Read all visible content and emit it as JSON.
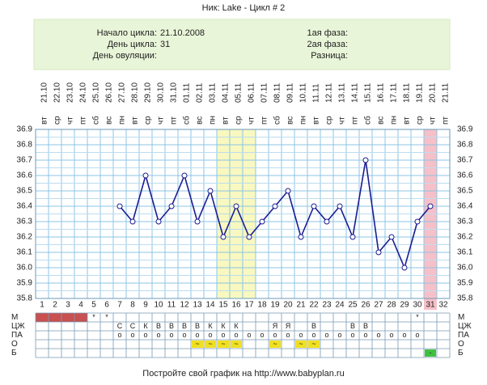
{
  "chart_data": {
    "type": "line",
    "title": "Ник: Lake - Цикл # 2",
    "info_left": [
      {
        "label": "Начало цикла:",
        "value": "21.10.2008"
      },
      {
        "label": "День цикла:",
        "value": "31"
      },
      {
        "label": "День овуляции:"
      }
    ],
    "info_right": [
      {
        "label": "1ая фаза:"
      },
      {
        "label": "2ая фаза:"
      },
      {
        "label": "Разница:"
      }
    ],
    "categories": [
      1,
      2,
      3,
      4,
      5,
      6,
      7,
      8,
      9,
      10,
      11,
      12,
      13,
      14,
      15,
      16,
      17,
      18,
      19,
      20,
      21,
      22,
      23,
      24,
      25,
      26,
      27,
      28,
      29,
      30,
      31,
      32
    ],
    "dates": [
      "21.10",
      "22.10",
      "23.10",
      "24.10",
      "25.10",
      "26.10",
      "27.10",
      "28.10",
      "29.10",
      "30.10",
      "31.10",
      "01.11",
      "02.11",
      "03.11",
      "04.11",
      "05.11",
      "06.11",
      "07.11",
      "08.11",
      "09.11",
      "10.11",
      "11.11",
      "12.11",
      "13.11",
      "14.11",
      "15.11",
      "16.11",
      "17.11",
      "18.11",
      "19.11",
      "20.11",
      "21.11"
    ],
    "weekdays": [
      "вт",
      "ср",
      "чт",
      "пт",
      "сб",
      "вс",
      "пн",
      "вт",
      "ср",
      "чт",
      "пт",
      "сб",
      "вс",
      "пн",
      "вт",
      "ср",
      "чт",
      "пт",
      "сб",
      "вс",
      "пн",
      "вт",
      "ср",
      "чт",
      "пт",
      "сб",
      "вс",
      "пн",
      "вт",
      "ср",
      "чт",
      "пт"
    ],
    "values": [
      null,
      null,
      null,
      null,
      null,
      null,
      36.4,
      36.3,
      36.6,
      36.3,
      36.4,
      36.6,
      36.3,
      36.5,
      36.2,
      36.4,
      36.2,
      36.3,
      36.4,
      36.5,
      36.2,
      36.4,
      36.3,
      36.4,
      36.2,
      36.7,
      36.1,
      36.2,
      36.0,
      36.3,
      36.4,
      null
    ],
    "color": "#1c1c90",
    "ylim": [
      35.8,
      36.9
    ],
    "yticks": [
      {
        "value": 35.8,
        "label": "35.8"
      },
      {
        "value": 35.9,
        "label": "35.9"
      },
      {
        "value": 36.0,
        "label": "36.0"
      },
      36.1,
      36.2,
      36.3,
      36.4,
      36.5,
      36.6,
      36.7,
      36.8,
      36.9
    ],
    "grid": true,
    "highlight_days": [
      15,
      16,
      17
    ],
    "highlight_color": "#f8f8c0",
    "current_day": 31,
    "current_color": "#f6c0c8",
    "menses_days": [
      1,
      2,
      3,
      4
    ],
    "menses_color": "#c85050",
    "rows": [
      {
        "name": "М",
        "cells": [
          null,
          null,
          null,
          null,
          "*",
          "*",
          null,
          null,
          null,
          null,
          null,
          null,
          null,
          null,
          null,
          null,
          null,
          null,
          null,
          null,
          null,
          null,
          null,
          null,
          null,
          null,
          null,
          null,
          null,
          "*",
          null,
          null
        ],
        "text_color": "#e05050"
      },
      {
        "name": "ЦЖ",
        "cells": [
          null,
          null,
          null,
          null,
          null,
          null,
          "С",
          "С",
          "К",
          "В",
          "В",
          "В",
          "В",
          "К",
          "К",
          "К",
          null,
          null,
          "Я",
          "Я",
          null,
          "В",
          null,
          null,
          "В",
          "В",
          null,
          null,
          null,
          null,
          null,
          null
        ]
      },
      {
        "name": "ПА",
        "cells": [
          null,
          null,
          null,
          null,
          null,
          null,
          "o",
          "o",
          "o",
          "o",
          "o",
          "o",
          "o",
          "o",
          "o",
          "o",
          "o",
          "o",
          "o",
          "o",
          "o",
          "o",
          "o",
          "o",
          "o",
          "o",
          "o",
          "o",
          "o",
          "o",
          null,
          null
        ],
        "text_color": "#e05050"
      },
      {
        "name": "О",
        "cells": [
          null,
          null,
          null,
          null,
          null,
          null,
          null,
          null,
          null,
          null,
          null,
          null,
          "~",
          "~",
          "~",
          "~",
          null,
          null,
          "~",
          null,
          "~",
          "~",
          null,
          null,
          null,
          null,
          null,
          null,
          null,
          null,
          null,
          null
        ],
        "cell_color": "#f0e020"
      },
      {
        "name": "Б",
        "cells": [
          null,
          null,
          null,
          null,
          null,
          null,
          null,
          null,
          null,
          null,
          null,
          null,
          null,
          null,
          null,
          null,
          null,
          null,
          null,
          null,
          null,
          null,
          null,
          null,
          null,
          null,
          null,
          null,
          null,
          null,
          "-",
          null
        ],
        "cell_color": "#40c040"
      }
    ],
    "footer": "Постройте свой график на http://www.babyplan.ru"
  }
}
